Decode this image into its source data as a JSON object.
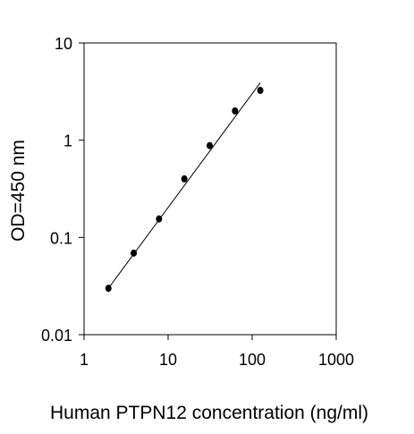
{
  "chart_data": {
    "type": "scatter",
    "title": "",
    "xlabel": "Human PTPN12 concentration (ng/ml)",
    "ylabel": "OD=450 nm",
    "x_scale": "log",
    "y_scale": "log",
    "xlim": [
      1,
      1000
    ],
    "ylim": [
      0.01,
      10
    ],
    "x_ticks": [
      1,
      10,
      100,
      1000
    ],
    "x_tick_labels": [
      "1",
      "10",
      "100",
      "1000"
    ],
    "y_ticks": [
      0.01,
      0.1,
      1,
      10
    ],
    "y_tick_labels": [
      "0.01",
      "0.1",
      "1",
      "10"
    ],
    "grid": false,
    "legend": "none",
    "series": [
      {
        "x": [
          1.95,
          3.9,
          7.8,
          15.6,
          31.25,
          62.5,
          125
        ],
        "y": [
          0.03,
          0.069,
          0.155,
          0.4,
          0.88,
          2.0,
          3.25
        ]
      }
    ],
    "fit_line": {
      "x": [
        1.95,
        125
      ],
      "y": [
        0.03,
        3.9
      ]
    },
    "colors": {
      "marker": "#000000",
      "line": "#000000",
      "axis": "#000000",
      "background": "#ffffff"
    }
  }
}
